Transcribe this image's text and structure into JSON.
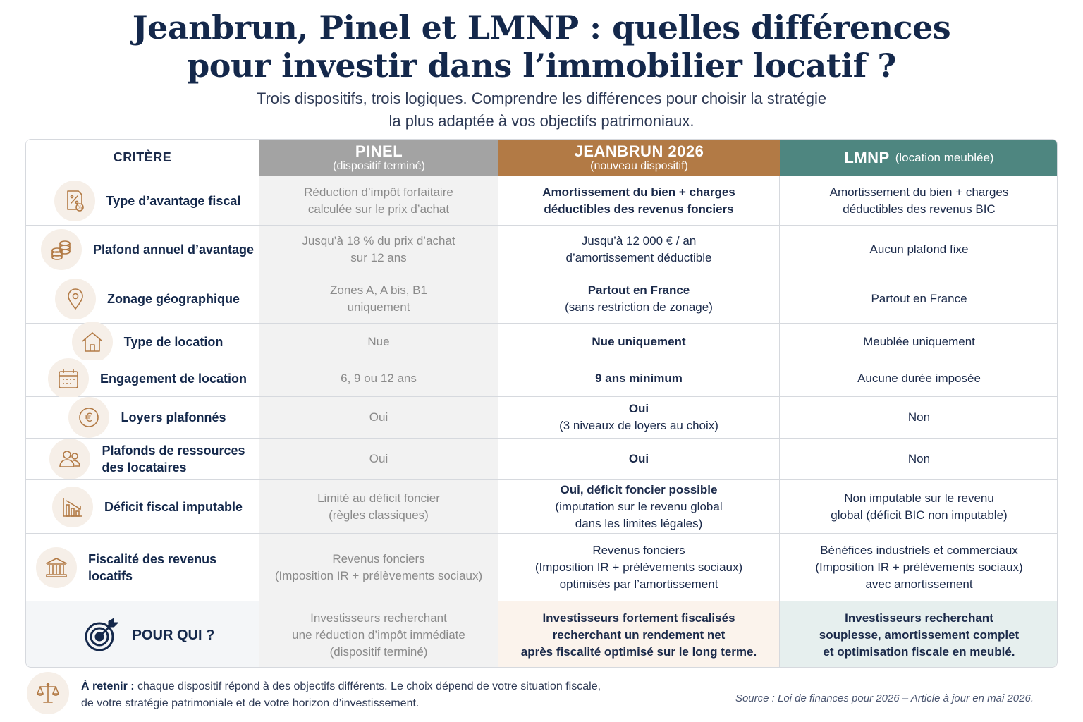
{
  "title_line1": "Jeanbrun, Pinel et LMNP : quelles différences",
  "title_line2": "pour investir dans l’immobilier locatif ?",
  "subtitle_line1": "Trois dispositifs, trois logiques. Comprendre les différences pour choisir la stratégie",
  "subtitle_line2": "la plus adaptée à vos objectifs patrimoniaux.",
  "colors": {
    "pinel": "#a3a3a3",
    "jeanbrun": "#b27a45",
    "lmnp": "#4e8680",
    "navy": "#14284b",
    "accent": "#b27a45"
  },
  "header": {
    "criterion": "CRITÈRE",
    "pinel": {
      "name": "PINEL",
      "sub": "(dispositif terminé)"
    },
    "jeanbrun": {
      "name": "JEANBRUN 2026",
      "sub": "(nouveau dispositif)"
    },
    "lmnp": {
      "name": "LMNP",
      "sub": "(location meublée)"
    }
  },
  "rows": [
    {
      "icon": "percent-document-icon",
      "label": [
        "Type d’avantage fiscal",
        ""
      ],
      "pinel": [
        "Réduction d’impôt forfaitaire",
        "calculée sur le prix d’achat",
        ""
      ],
      "jeanbrun": [
        "Amortissement du bien + charges",
        "déductibles des revenus fonciers",
        ""
      ],
      "lmnp": [
        "Amortissement du bien + charges",
        "déductibles des revenus BIC",
        ""
      ]
    },
    {
      "icon": "coins-icon",
      "label": [
        "Plafond annuel d’avantage",
        ""
      ],
      "pinel": [
        "Jusqu’à 18 % du prix d’achat",
        "sur 12 ans",
        ""
      ],
      "jeanbrun": [
        "Jusqu’à 12 000 € / an",
        "d’amortissement déductible",
        ""
      ],
      "lmnp": [
        "Aucun plafond fixe",
        "",
        ""
      ]
    },
    {
      "icon": "map-pin-icon",
      "label": [
        "Zonage géographique",
        ""
      ],
      "pinel": [
        "Zones A, A bis, B1",
        "uniquement",
        ""
      ],
      "jeanbrun": [
        "Partout en France",
        "(sans restriction de zonage)",
        ""
      ],
      "lmnp": [
        "Partout en France",
        "",
        ""
      ]
    },
    {
      "icon": "house-icon",
      "label": [
        "Type de location",
        ""
      ],
      "pinel": [
        "Nue",
        "",
        ""
      ],
      "jeanbrun": [
        "Nue uniquement",
        "",
        ""
      ],
      "lmnp": [
        "Meublée uniquement",
        "",
        ""
      ]
    },
    {
      "icon": "calendar-icon",
      "label": [
        "Engagement de location",
        ""
      ],
      "pinel": [
        "6, 9 ou 12 ans",
        "",
        ""
      ],
      "jeanbrun": [
        "9 ans minimum",
        "",
        ""
      ],
      "lmnp": [
        "Aucune durée imposée",
        "",
        ""
      ]
    },
    {
      "icon": "euro-icon",
      "label": [
        "Loyers plafonnés",
        ""
      ],
      "pinel": [
        "Oui",
        "",
        ""
      ],
      "jeanbrun": [
        "Oui",
        "(3 niveaux de loyers au choix)",
        ""
      ],
      "lmnp": [
        "Non",
        "",
        ""
      ]
    },
    {
      "icon": "users-icon",
      "label": [
        "Plafonds de ressources",
        "des locataires"
      ],
      "pinel": [
        "Oui",
        "",
        ""
      ],
      "jeanbrun": [
        "Oui",
        "",
        ""
      ],
      "lmnp": [
        "Non",
        "",
        ""
      ]
    },
    {
      "icon": "declining-chart-icon",
      "label": [
        "Déficit fiscal imputable",
        ""
      ],
      "pinel": [
        "Limité au déficit foncier",
        "(règles classiques)",
        ""
      ],
      "jeanbrun": [
        "Oui, déficit foncier possible",
        "(imputation sur le revenu global",
        "dans les limites légales)"
      ],
      "lmnp": [
        "Non imputable sur le revenu",
        "global (déficit BIC non imputable)",
        ""
      ]
    },
    {
      "icon": "bank-icon",
      "label": [
        "Fiscalité des revenus locatifs",
        ""
      ],
      "pinel": [
        "Revenus fonciers",
        "(Imposition IR + prélèvements sociaux)",
        ""
      ],
      "jeanbrun": [
        "Revenus fonciers",
        "(Imposition IR + prélèvements sociaux)",
        "optimisés par l’amortissement"
      ],
      "lmnp": [
        "Bénéfices industriels et commerciaux",
        "(Imposition IR + prélèvements sociaux)",
        "avec amortissement"
      ]
    },
    {
      "icon": "target-icon",
      "label": [
        "POUR QUI ?",
        ""
      ],
      "pinel": [
        "Investisseurs recherchant",
        "une réduction d’impôt immédiate",
        "(dispositif terminé)"
      ],
      "jeanbrun": [
        "Investisseurs fortement fiscalisés",
        "recherchant un rendement net",
        "après fiscalité optimisé sur le long terme."
      ],
      "lmnp": [
        "Investisseurs recherchant",
        "souplesse, amortissement complet",
        "et optimisation fiscale en meublé."
      ]
    }
  ],
  "footer": {
    "icon": "scales-icon",
    "label": "À retenir :",
    "text1": " chaque dispositif répond à des objectifs différents. Le choix dépend de votre situation fiscale,",
    "text2": "de votre stratégie patrimoniale et de votre horizon d’investissement.",
    "source": "Source : Loi de finances pour 2026 – Article à jour en mai 2026."
  }
}
